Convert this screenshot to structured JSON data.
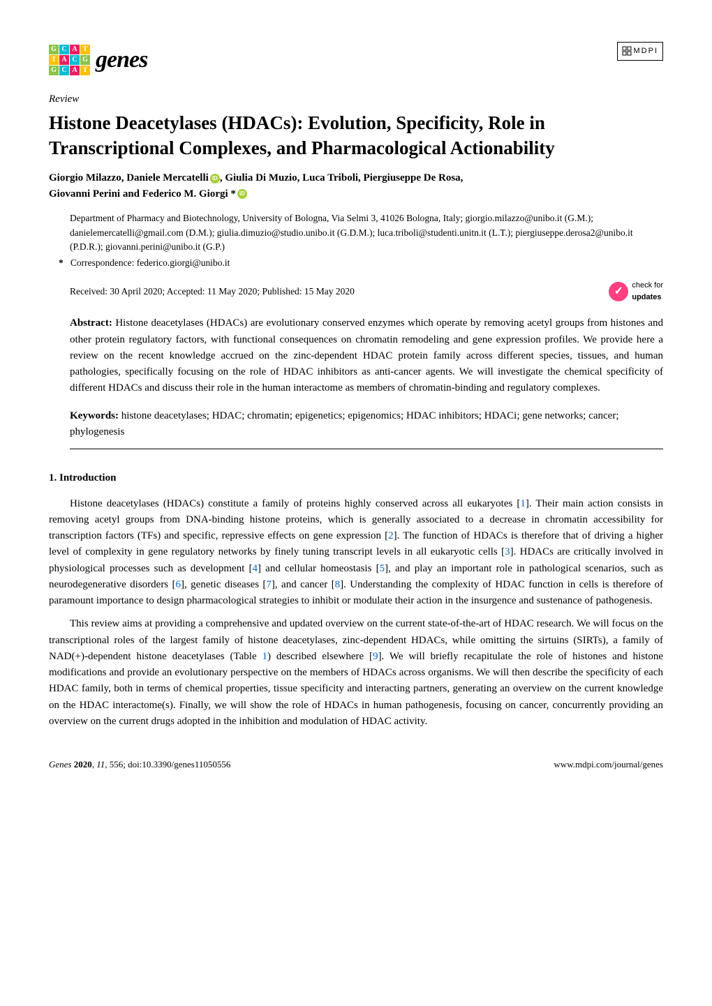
{
  "journal": {
    "name": "genes",
    "logo_cells": [
      {
        "bg": "#8bc34a",
        "text": "G"
      },
      {
        "bg": "#00bcd4",
        "text": "C"
      },
      {
        "bg": "#e91e63",
        "text": "A"
      },
      {
        "bg": "#ffc107",
        "text": "T"
      },
      {
        "bg": "#ffc107",
        "text": "T"
      },
      {
        "bg": "#e91e63",
        "text": "A"
      },
      {
        "bg": "#00bcd4",
        "text": "C"
      },
      {
        "bg": "#8bc34a",
        "text": "G"
      },
      {
        "bg": "#8bc34a",
        "text": "G"
      },
      {
        "bg": "#00bcd4",
        "text": "C"
      },
      {
        "bg": "#e91e63",
        "text": "A"
      },
      {
        "bg": "#ffc107",
        "text": "T"
      }
    ]
  },
  "publisher": "MDPI",
  "article_type": "Review",
  "title": "Histone Deacetylases (HDACs): Evolution, Specificity, Role in Transcriptional Complexes, and Pharmacological Actionability",
  "authors_line1": "Giorgio Milazzo, Daniele Mercatelli",
  "authors_line2": ", Giulia Di Muzio, Luca Triboli, Piergiuseppe De Rosa,",
  "authors_line3": "Giovanni Perini and Federico M. Giorgi *",
  "affiliation": "Department of Pharmacy and Biotechnology, University of Bologna, Via Selmi 3, 41026 Bologna, Italy; giorgio.milazzo@unibo.it (G.M.); danielemercatelli@gmail.com (D.M.); giulia.dimuzio@studio.unibo.it (G.D.M.); luca.triboli@studenti.unitn.it (L.T.); piergiuseppe.derosa2@unibo.it (P.D.R.); giovanni.perini@unibo.it (G.P.)",
  "correspondence_label": "*",
  "correspondence": "Correspondence: federico.giorgi@unibo.it",
  "dates": "Received: 30 April 2020; Accepted: 11 May 2020; Published: 15 May 2020",
  "check_updates_label1": "check for",
  "check_updates_label2": "updates",
  "abstract_label": "Abstract:",
  "abstract_text": " Histone deacetylases (HDACs) are evolutionary conserved enzymes which operate by removing acetyl groups from histones and other protein regulatory factors, with functional consequences on chromatin remodeling and gene expression profiles. We provide here a review on the recent knowledge accrued on the zinc-dependent HDAC protein family across different species, tissues, and human pathologies, specifically focusing on the role of HDAC inhibitors as anti-cancer agents. We will investigate the chemical specificity of different HDACs and discuss their role in the human interactome as members of chromatin-binding and regulatory complexes.",
  "keywords_label": "Keywords:",
  "keywords_text": " histone deacetylases; HDAC; chromatin; epigenetics; epigenomics; HDAC inhibitors; HDACi; gene networks; cancer; phylogenesis",
  "section_heading": "1. Introduction",
  "paragraph1_parts": [
    {
      "type": "text",
      "value": "Histone deacetylases (HDACs) constitute a family of proteins highly conserved across all eukaryotes ["
    },
    {
      "type": "ref",
      "value": "1"
    },
    {
      "type": "text",
      "value": "]. Their main action consists in removing acetyl groups from DNA-binding histone proteins, which is generally associated to a decrease in chromatin accessibility for transcription factors (TFs) and specific, repressive effects on gene expression ["
    },
    {
      "type": "ref",
      "value": "2"
    },
    {
      "type": "text",
      "value": "]. The function of HDACs is therefore that of driving a higher level of complexity in gene regulatory networks by finely tuning transcript levels in all eukaryotic cells ["
    },
    {
      "type": "ref",
      "value": "3"
    },
    {
      "type": "text",
      "value": "]. HDACs are critically involved in physiological processes such as development ["
    },
    {
      "type": "ref",
      "value": "4"
    },
    {
      "type": "text",
      "value": "] and cellular homeostasis ["
    },
    {
      "type": "ref",
      "value": "5"
    },
    {
      "type": "text",
      "value": "], and play an important role in pathological scenarios, such as neurodegenerative disorders ["
    },
    {
      "type": "ref",
      "value": "6"
    },
    {
      "type": "text",
      "value": "], genetic diseases ["
    },
    {
      "type": "ref",
      "value": "7"
    },
    {
      "type": "text",
      "value": "], and cancer ["
    },
    {
      "type": "ref",
      "value": "8"
    },
    {
      "type": "text",
      "value": "]. Understanding the complexity of HDAC function in cells is therefore of paramount importance to design pharmacological strategies to inhibit or modulate their action in the insurgence and sustenance of pathogenesis."
    }
  ],
  "paragraph2_parts": [
    {
      "type": "text",
      "value": "This review aims at providing a comprehensive and updated overview on the current state-of-the-art of HDAC research. We will focus on the transcriptional roles of the largest family of histone deacetylases, zinc-dependent HDACs, while omitting the sirtuins (SIRTs), a family of NAD(+)-dependent histone deacetylases (Table "
    },
    {
      "type": "ref",
      "value": "1"
    },
    {
      "type": "text",
      "value": ") described elsewhere ["
    },
    {
      "type": "ref",
      "value": "9"
    },
    {
      "type": "text",
      "value": "]. We will briefly recapitulate the role of histones and histone modifications and provide an evolutionary perspective on the members of HDACs across organisms. We will then describe the specificity of each HDAC family, both in terms of chemical properties, tissue specificity and interacting partners, generating an overview on the current knowledge on the HDAC interactome(s). Finally, we will show the role of HDACs in human pathogenesis, focusing on cancer, concurrently providing an overview on the current drugs adopted in the inhibition and modulation of HDAC activity."
    }
  ],
  "footer_left": "Genes 2020, 11, 556; doi:10.3390/genes11050556",
  "footer_right": "www.mdpi.com/journal/genes"
}
